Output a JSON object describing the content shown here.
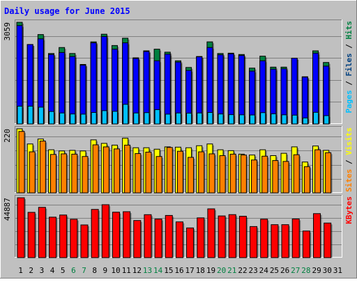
{
  "colors": {
    "outer_bg": "#c0c0c0",
    "plot_bg": "#c0c0c0",
    "title": "#0000ff",
    "text": "#000000",
    "weekend": "#008040",
    "grid": "#808080",
    "pages": "#0000ff",
    "files": "#004080",
    "hits": "#00c0ff",
    "visits": "#ffff00",
    "sites": "#ff8000",
    "kbytes": "#ff0000",
    "hits_dark": "#008040"
  },
  "chart_data": [
    {
      "type": "bar",
      "title": "Daily usage for June 2015",
      "ymax_label": "3059",
      "ymax": 3059,
      "categories": [
        "1",
        "2",
        "3",
        "4",
        "5",
        "6",
        "7",
        "8",
        "9",
        "10",
        "11",
        "12",
        "13",
        "14",
        "15",
        "16",
        "17",
        "18",
        "19",
        "20",
        "21",
        "22",
        "23",
        "24",
        "25",
        "26",
        "27",
        "28",
        "29",
        "30",
        "31"
      ],
      "weekend_days": [
        "6",
        "7",
        "13",
        "14",
        "20",
        "21",
        "27",
        "28"
      ],
      "legend": [
        "Hits",
        "Files",
        "Pages"
      ],
      "series": [
        {
          "name": "Hits",
          "values": [
            3059,
            2390,
            2690,
            2120,
            2300,
            2120,
            1790,
            2470,
            2700,
            2360,
            2580,
            1990,
            2200,
            2250,
            2160,
            1900,
            1700,
            2030,
            2470,
            2120,
            2130,
            2090,
            1680,
            2040,
            1710,
            1710,
            1980,
            1420,
            2200,
            1850,
            0
          ]
        },
        {
          "name": "Files",
          "values": [
            2960,
            2390,
            2560,
            2090,
            2150,
            2030,
            1770,
            2440,
            2630,
            2250,
            2440,
            1970,
            2180,
            1900,
            2100,
            1860,
            1610,
            2020,
            2300,
            2080,
            2110,
            2060,
            1590,
            1900,
            1650,
            1660,
            1980,
            1410,
            2130,
            1740,
            0
          ]
        },
        {
          "name": "Pages",
          "values": [
            535,
            535,
            505,
            375,
            330,
            300,
            295,
            345,
            400,
            380,
            590,
            330,
            340,
            430,
            295,
            330,
            325,
            330,
            345,
            300,
            280,
            275,
            270,
            340,
            305,
            275,
            265,
            180,
            350,
            250,
            0
          ]
        }
      ]
    },
    {
      "type": "bar",
      "ymax_label": "220",
      "ymax": 220,
      "categories": [
        "1",
        "2",
        "3",
        "4",
        "5",
        "6",
        "7",
        "8",
        "9",
        "10",
        "11",
        "12",
        "13",
        "14",
        "15",
        "16",
        "17",
        "18",
        "19",
        "20",
        "21",
        "22",
        "23",
        "24",
        "25",
        "26",
        "27",
        "28",
        "29",
        "30",
        "31"
      ],
      "legend": [
        "Visits",
        "Sites"
      ],
      "series": [
        {
          "name": "Visits",
          "values": [
            220,
            168,
            185,
            148,
            144,
            146,
            144,
            182,
            170,
            164,
            188,
            155,
            155,
            150,
            158,
            157,
            155,
            162,
            168,
            148,
            145,
            133,
            130,
            148,
            128,
            136,
            158,
            106,
            161,
            146,
            0
          ]
        },
        {
          "name": "Sites",
          "values": [
            211,
            141,
            178,
            132,
            134,
            133,
            125,
            165,
            158,
            151,
            164,
            135,
            140,
            125,
            156,
            143,
            122,
            141,
            134,
            128,
            133,
            130,
            113,
            126,
            111,
            108,
            131,
            90,
            148,
            138,
            0
          ]
        }
      ]
    },
    {
      "type": "bar",
      "ymax_label": "44887",
      "ymax": 44887,
      "categories": [
        "1",
        "2",
        "3",
        "4",
        "5",
        "6",
        "7",
        "8",
        "9",
        "10",
        "11",
        "12",
        "13",
        "14",
        "15",
        "16",
        "17",
        "18",
        "19",
        "20",
        "21",
        "22",
        "23",
        "24",
        "25",
        "26",
        "27",
        "28",
        "29",
        "30",
        "31"
      ],
      "legend": [
        "KBytes"
      ],
      "series": [
        {
          "name": "KBytes",
          "values": [
            44887,
            33950,
            37710,
            30340,
            31950,
            28770,
            24520,
            36150,
            39680,
            34080,
            34430,
            27820,
            32210,
            28900,
            31630,
            26800,
            22270,
            29820,
            36560,
            31260,
            32240,
            31040,
            23310,
            28840,
            24710,
            24710,
            29000,
            19960,
            32990,
            25940,
            0
          ]
        }
      ]
    }
  ]
}
